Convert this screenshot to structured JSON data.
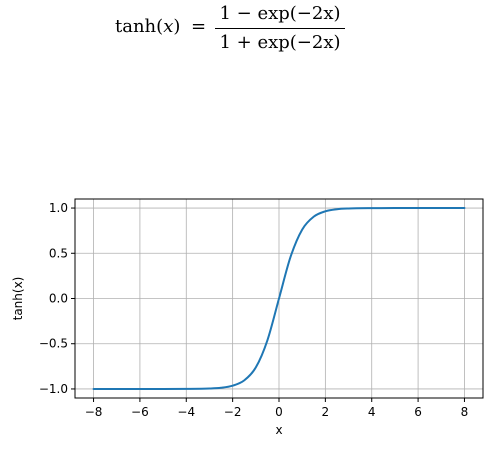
{
  "formula": {
    "lhs": "tanh(x)",
    "equals": "=",
    "numerator": "1 − exp(−2x)",
    "denominator": "1 + exp(−2x)"
  },
  "chart_data": {
    "type": "line",
    "title": "",
    "xlabel": "x",
    "ylabel": "tanh(x)",
    "xlim": [
      -8.8,
      8.8
    ],
    "ylim": [
      -1.1,
      1.1
    ],
    "xticks": [
      -8,
      -6,
      -4,
      -2,
      0,
      2,
      4,
      6,
      8
    ],
    "yticks": [
      -1.0,
      -0.5,
      0.0,
      0.5,
      1.0
    ],
    "xtick_labels": [
      "−8",
      "−6",
      "−4",
      "−2",
      "0",
      "2",
      "4",
      "6",
      "8"
    ],
    "ytick_labels": [
      "−1.0",
      "−0.5",
      "0.0",
      "0.5",
      "1.0"
    ],
    "grid": true,
    "series": [
      {
        "color": "#1f77b4",
        "x": [
          -8,
          -6,
          -4,
          -3,
          -2.5,
          -2,
          -1.5,
          -1,
          -0.5,
          0,
          0.5,
          1,
          1.5,
          2,
          2.5,
          3,
          4,
          6,
          8
        ],
        "y": [
          -1.0,
          -1.0,
          -0.999,
          -0.995,
          -0.987,
          -0.964,
          -0.905,
          -0.762,
          -0.462,
          0.0,
          0.462,
          0.762,
          0.905,
          0.964,
          0.987,
          0.995,
          0.999,
          1.0,
          1.0
        ]
      }
    ]
  }
}
